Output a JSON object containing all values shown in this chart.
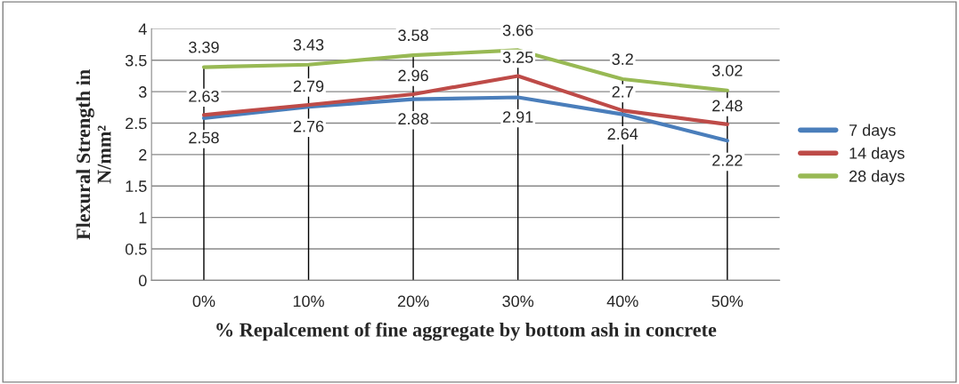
{
  "chart_data": {
    "type": "line",
    "xlabel": "% Repalcement of fine aggregate by bottom ash in concrete",
    "ylabel": "Flexural Strength in\nN/mm²",
    "categories": [
      "0%",
      "10%",
      "20%",
      "30%",
      "40%",
      "50%"
    ],
    "series": [
      {
        "name": "7 days",
        "color": "#4a7ebb",
        "values": [
          2.58,
          2.76,
          2.88,
          2.91,
          2.64,
          2.22
        ]
      },
      {
        "name": "14 days",
        "color": "#be4b48",
        "values": [
          2.63,
          2.79,
          2.96,
          3.25,
          2.7,
          2.48
        ]
      },
      {
        "name": "28 days",
        "color": "#98b954",
        "values": [
          3.39,
          3.43,
          3.58,
          3.66,
          3.2,
          3.02
        ]
      }
    ],
    "ylim": [
      0,
      4
    ],
    "yticks": [
      0,
      0.5,
      1,
      1.5,
      2,
      2.5,
      3,
      3.5,
      4
    ],
    "grid": "y",
    "legend": "right",
    "data_labels": true,
    "marker": "none",
    "line_style": "solid",
    "ref_lines": [
      {
        "axis": "x",
        "value": "0%",
        "color": "#000000"
      },
      {
        "axis": "x",
        "value": "10%",
        "color": "#000000"
      },
      {
        "axis": "x",
        "value": "20%",
        "color": "#000000"
      },
      {
        "axis": "x",
        "value": "30%",
        "color": "#000000"
      },
      {
        "axis": "x",
        "value": "40%",
        "color": "#000000"
      },
      {
        "axis": "x",
        "value": "50%",
        "color": "#000000"
      }
    ]
  }
}
